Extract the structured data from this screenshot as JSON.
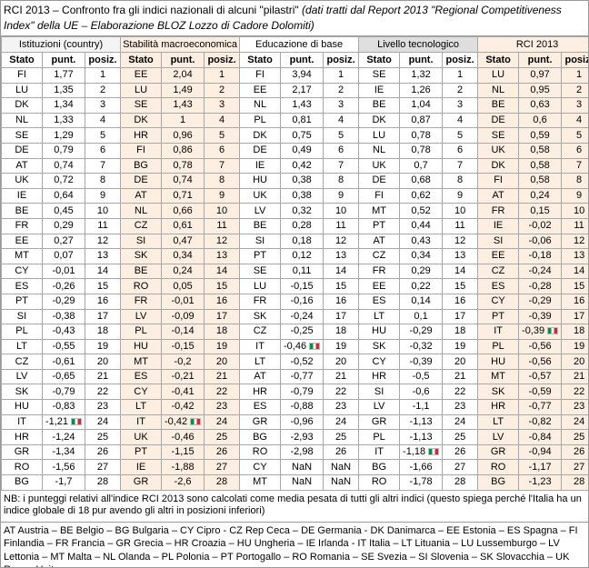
{
  "header": {
    "title": "RCI 2013 – Confronto fra gli indici nazionali di alcuni \"pilastri\"",
    "subtitle": "(dati tratti dal Report 2013 \"Regional Competitiveness Index\" della UE – Elaborazione BLOZ Lozzo di Cadore Dolomiti)"
  },
  "table": {
    "groups": [
      {
        "title": "Istituzioni (country)",
        "columns": [
          "Stato",
          "punt.",
          "posiz."
        ],
        "rows": [
          [
            "FI",
            "1,77",
            1
          ],
          [
            "LU",
            "1,35",
            2
          ],
          [
            "DK",
            "1,34",
            3
          ],
          [
            "NL",
            "1,33",
            4
          ],
          [
            "SE",
            "1,29",
            5
          ],
          [
            "DE",
            "0,79",
            6
          ],
          [
            "AT",
            "0,74",
            7
          ],
          [
            "UK",
            "0,72",
            8
          ],
          [
            "IE",
            "0,64",
            9
          ],
          [
            "BE",
            "0,45",
            10
          ],
          [
            "FR",
            "0,29",
            11
          ],
          [
            "EE",
            "0,27",
            12
          ],
          [
            "MT",
            "0,07",
            13
          ],
          [
            "CY",
            "-0,01",
            14
          ],
          [
            "ES",
            "-0,26",
            15
          ],
          [
            "PT",
            "-0,29",
            16
          ],
          [
            "SI",
            "-0,38",
            17
          ],
          [
            "PL",
            "-0,43",
            18
          ],
          [
            "LT",
            "-0,55",
            19
          ],
          [
            "CZ",
            "-0,61",
            20
          ],
          [
            "LV",
            "-0,65",
            21
          ],
          [
            "SK",
            "-0,79",
            22
          ],
          [
            "HU",
            "-0,83",
            23
          ],
          [
            "IT",
            "-1,21",
            24
          ],
          [
            "HR",
            "-1,24",
            25
          ],
          [
            "GR",
            "-1,34",
            26
          ],
          [
            "RO",
            "-1,56",
            27
          ],
          [
            "BG",
            "-1,7",
            28
          ]
        ]
      },
      {
        "title": "Stabilità macroeconomica",
        "columns": [
          "Stato",
          "punt.",
          "posiz."
        ],
        "rows": [
          [
            "EE",
            "2,04",
            1
          ],
          [
            "LU",
            "1,49",
            2
          ],
          [
            "SE",
            "1,43",
            3
          ],
          [
            "DK",
            "1",
            4
          ],
          [
            "HR",
            "0,96",
            5
          ],
          [
            "FI",
            "0,86",
            6
          ],
          [
            "BG",
            "0,78",
            7
          ],
          [
            "DE",
            "0,74",
            8
          ],
          [
            "AT",
            "0,71",
            9
          ],
          [
            "NL",
            "0,66",
            10
          ],
          [
            "CZ",
            "0,61",
            11
          ],
          [
            "SI",
            "0,47",
            12
          ],
          [
            "SK",
            "0,34",
            13
          ],
          [
            "BE",
            "0,24",
            14
          ],
          [
            "RO",
            "0,05",
            15
          ],
          [
            "FR",
            "-0,01",
            16
          ],
          [
            "LV",
            "-0,09",
            17
          ],
          [
            "PL",
            "-0,14",
            18
          ],
          [
            "HU",
            "-0,15",
            19
          ],
          [
            "MT",
            "-0,2",
            20
          ],
          [
            "ES",
            "-0,21",
            21
          ],
          [
            "CY",
            "-0,41",
            22
          ],
          [
            "LT",
            "-0,42",
            23
          ],
          [
            "IT",
            "-0,42",
            24
          ],
          [
            "UK",
            "-0,46",
            25
          ],
          [
            "PT",
            "-1,15",
            26
          ],
          [
            "IE",
            "-1,88",
            27
          ],
          [
            "GR",
            "-2,6",
            28
          ]
        ]
      },
      {
        "title": "Educazione di base",
        "columns": [
          "Stato",
          "punt.",
          "posiz."
        ],
        "rows": [
          [
            "FI",
            "3,94",
            1
          ],
          [
            "EE",
            "2,17",
            2
          ],
          [
            "NL",
            "1,43",
            3
          ],
          [
            "PL",
            "0,81",
            4
          ],
          [
            "DK",
            "0,75",
            5
          ],
          [
            "DE",
            "0,49",
            6
          ],
          [
            "IE",
            "0,42",
            7
          ],
          [
            "HU",
            "0,38",
            8
          ],
          [
            "UK",
            "0,38",
            9
          ],
          [
            "LV",
            "0,32",
            10
          ],
          [
            "BE",
            "0,28",
            11
          ],
          [
            "SI",
            "0,18",
            12
          ],
          [
            "PT",
            "0,12",
            13
          ],
          [
            "SE",
            "0,11",
            14
          ],
          [
            "LU",
            "-0,15",
            15
          ],
          [
            "FR",
            "-0,16",
            16
          ],
          [
            "SK",
            "-0,24",
            17
          ],
          [
            "CZ",
            "-0,25",
            18
          ],
          [
            "IT",
            "-0,46",
            19
          ],
          [
            "LT",
            "-0,52",
            20
          ],
          [
            "AT",
            "-0,77",
            21
          ],
          [
            "HR",
            "-0,79",
            22
          ],
          [
            "ES",
            "-0,88",
            23
          ],
          [
            "GR",
            "-0,96",
            24
          ],
          [
            "BG",
            "-2,93",
            25
          ],
          [
            "RO",
            "-2,98",
            26
          ],
          [
            "CY",
            "NaN",
            "NaN"
          ],
          [
            "MT",
            "NaN",
            "NaN"
          ]
        ]
      },
      {
        "title": "Livello tecnologico",
        "columns": [
          "Stato",
          "punt.",
          "posiz."
        ],
        "rows": [
          [
            "SE",
            "1,32",
            1
          ],
          [
            "IE",
            "1,26",
            2
          ],
          [
            "BE",
            "1,04",
            3
          ],
          [
            "DK",
            "0,87",
            4
          ],
          [
            "LU",
            "0,78",
            5
          ],
          [
            "NL",
            "0,78",
            6
          ],
          [
            "UK",
            "0,7",
            7
          ],
          [
            "DE",
            "0,68",
            8
          ],
          [
            "FI",
            "0,62",
            9
          ],
          [
            "MT",
            "0,52",
            10
          ],
          [
            "PT",
            "0,44",
            11
          ],
          [
            "AT",
            "0,43",
            12
          ],
          [
            "CZ",
            "0,34",
            13
          ],
          [
            "FR",
            "0,29",
            14
          ],
          [
            "EE",
            "0,22",
            15
          ],
          [
            "ES",
            "0,14",
            16
          ],
          [
            "LT",
            "0,1",
            17
          ],
          [
            "HU",
            "-0,29",
            18
          ],
          [
            "SK",
            "-0,32",
            19
          ],
          [
            "CY",
            "-0,39",
            20
          ],
          [
            "HR",
            "-0,5",
            21
          ],
          [
            "SI",
            "-0,6",
            22
          ],
          [
            "LV",
            "-1,1",
            23
          ],
          [
            "GR",
            "-1,13",
            24
          ],
          [
            "PL",
            "-1,13",
            25
          ],
          [
            "IT",
            "-1,18",
            26
          ],
          [
            "BG",
            "-1,66",
            27
          ],
          [
            "RO",
            "-1,78",
            28
          ]
        ]
      },
      {
        "title": "RCI 2013",
        "columns": [
          "Stato",
          "punt.",
          "posiz."
        ],
        "rows": [
          [
            "LU",
            "0,97",
            1
          ],
          [
            "NL",
            "0,95",
            2
          ],
          [
            "BE",
            "0,63",
            3
          ],
          [
            "DE",
            "0,6",
            4
          ],
          [
            "SE",
            "0,59",
            5
          ],
          [
            "UK",
            "0,58",
            6
          ],
          [
            "DK",
            "0,58",
            7
          ],
          [
            "FI",
            "0,58",
            8
          ],
          [
            "AT",
            "0,24",
            9
          ],
          [
            "FR",
            "0,15",
            10
          ],
          [
            "IE",
            "-0,02",
            11
          ],
          [
            "SI",
            "-0,06",
            12
          ],
          [
            "EE",
            "-0,18",
            13
          ],
          [
            "CZ",
            "-0,24",
            14
          ],
          [
            "ES",
            "-0,28",
            15
          ],
          [
            "CY",
            "-0,29",
            16
          ],
          [
            "PT",
            "-0,39",
            17
          ],
          [
            "IT",
            "-0,39",
            18
          ],
          [
            "PL",
            "-0,56",
            19
          ],
          [
            "HU",
            "-0,56",
            20
          ],
          [
            "MT",
            "-0,57",
            21
          ],
          [
            "SK",
            "-0,59",
            22
          ],
          [
            "HR",
            "-0,77",
            23
          ],
          [
            "LT",
            "-0,82",
            24
          ],
          [
            "LV",
            "-0,84",
            25
          ],
          [
            "GR",
            "-0,94",
            26
          ],
          [
            "RO",
            "-1,17",
            27
          ],
          [
            "BG",
            "-1,23",
            28
          ]
        ]
      }
    ]
  },
  "note": "NB: i punteggi relativi all'indice RCI 2013 sono calcolati come media pesata di tutti gli altri indici (questo spiega perché l'Italia ha un indice globale di 18 pur avendo gli altri in posizioni inferiori)",
  "legend": "AT Austria – BE Belgio – BG Bulgaria – CY Cipro - CZ Rep Ceca – DE Germania - DK Danimarca – EE Estonia – ES Spagna – FI Finlandia – FR Francia – GR Grecia – HR Croazia – HU Ungheria – IE Irlanda - IT Italia – LT Lituania – LU Lussemburgo – LV Lettonia – MT Malta – NL Olanda – PL Polonia – PT Portogallo – RO Romania – SE Svezia – SI Slovenia – SK Slovacchia – UK Regno Unito"
}
